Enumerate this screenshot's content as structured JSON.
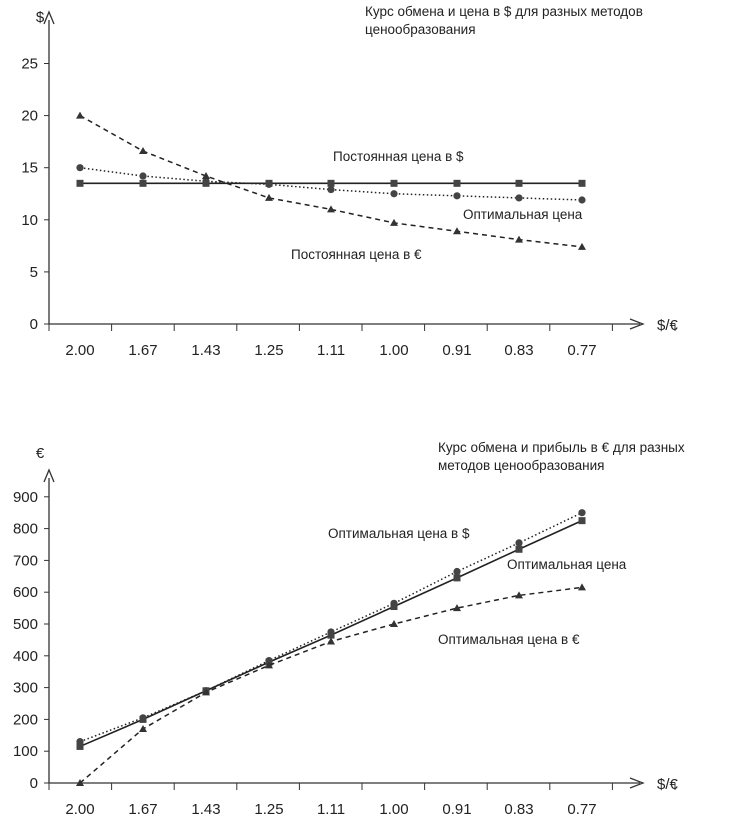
{
  "chart_data": [
    {
      "type": "line",
      "title": "Курс обмена и цена в $ для разных методов ценообразования",
      "title_lines": [
        "Курс обмена и цена в $ для разных методов",
        "ценообразования"
      ],
      "ylabel": "$",
      "xlabel": "$/€",
      "categories": [
        "2.00",
        "1.67",
        "1.43",
        "1.25",
        "1.11",
        "1.00",
        "0.91",
        "0.83",
        "0.77"
      ],
      "yticks": [
        0,
        5,
        10,
        15,
        20,
        25
      ],
      "ylim": [
        0,
        27
      ],
      "grid": false,
      "series": [
        {
          "name": "Постоянная цена в $",
          "marker": "square",
          "style": "solid",
          "values": [
            13.5,
            13.5,
            13.5,
            13.5,
            13.5,
            13.5,
            13.5,
            13.5,
            13.5
          ]
        },
        {
          "name": "Оптимальная цена",
          "marker": "circle",
          "style": "dotted",
          "values": [
            15.0,
            14.2,
            13.7,
            13.4,
            12.9,
            12.5,
            12.3,
            12.1,
            11.9
          ]
        },
        {
          "name": "Постоянная цена в €",
          "marker": "triangle",
          "style": "dashed",
          "values": [
            20.0,
            16.6,
            14.2,
            12.1,
            11.0,
            9.7,
            8.9,
            8.1,
            7.4
          ]
        }
      ]
    },
    {
      "type": "line",
      "title": "Курс обмена и прибыль в € для разных методов ценообразования",
      "title_lines": [
        "Курс обмена и прибыль в € для разных",
        "методов ценообразования"
      ],
      "ylabel": "€",
      "xlabel": "$/€",
      "categories": [
        "2.00",
        "1.67",
        "1.43",
        "1.25",
        "1.11",
        "1.00",
        "0.91",
        "0.83",
        "0.77"
      ],
      "yticks": [
        0,
        100,
        200,
        300,
        400,
        500,
        600,
        700,
        800,
        900
      ],
      "ylim": [
        0,
        980
      ],
      "grid": false,
      "series": [
        {
          "name": "Оптимальная цена",
          "marker": "circle",
          "style": "dotted",
          "values": [
            130,
            205,
            290,
            385,
            475,
            565,
            665,
            755,
            850
          ]
        },
        {
          "name": "Оптимальная цена в $",
          "marker": "square",
          "style": "solid",
          "values": [
            115,
            200,
            290,
            380,
            465,
            555,
            645,
            735,
            825
          ]
        },
        {
          "name": "Оптимальная цена в €",
          "marker": "triangle",
          "style": "dashed",
          "values": [
            0,
            170,
            285,
            370,
            445,
            500,
            550,
            590,
            615
          ]
        }
      ]
    }
  ]
}
